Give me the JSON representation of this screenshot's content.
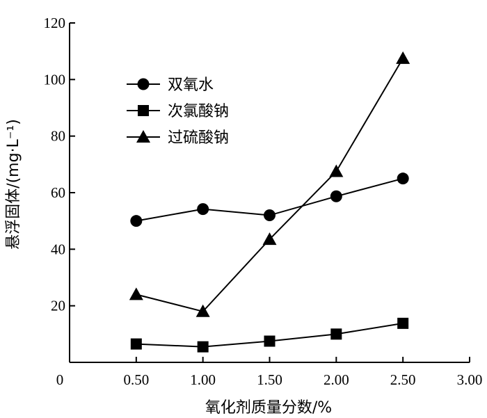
{
  "chart_data": {
    "type": "line",
    "xlabel": "氧化剂质量分数/%",
    "ylabel": "悬浮固体/(mg·L⁻¹)",
    "xlim": [
      0,
      3.0
    ],
    "ylim": [
      0,
      120
    ],
    "x_ticks": [
      0.5,
      1.0,
      1.5,
      2.0,
      2.5,
      3.0
    ],
    "x_tick_labels": [
      "0.50",
      "1.00",
      "1.50",
      "2.00",
      "2.50",
      "3.00"
    ],
    "y_ticks": [
      20,
      40,
      60,
      80,
      100,
      120
    ],
    "y_tick_labels": [
      "20",
      "40",
      "60",
      "80",
      "100",
      "120"
    ],
    "origin_label": "0",
    "grid": false,
    "legend_position": "top-left",
    "x": [
      0.5,
      1.0,
      1.5,
      2.0,
      2.5
    ],
    "series": [
      {
        "name": "双氧水",
        "marker": "circle",
        "values": [
          50,
          54.2,
          52,
          58.7,
          65
        ]
      },
      {
        "name": "次氯酸钠",
        "marker": "square",
        "values": [
          6.5,
          5.5,
          7.5,
          10,
          13.8
        ]
      },
      {
        "name": "过硫酸钠",
        "marker": "triangle",
        "values": [
          24,
          18,
          43.5,
          67.5,
          107.5
        ]
      }
    ],
    "colors": {
      "line": "#000000",
      "marker": "#000000"
    }
  }
}
